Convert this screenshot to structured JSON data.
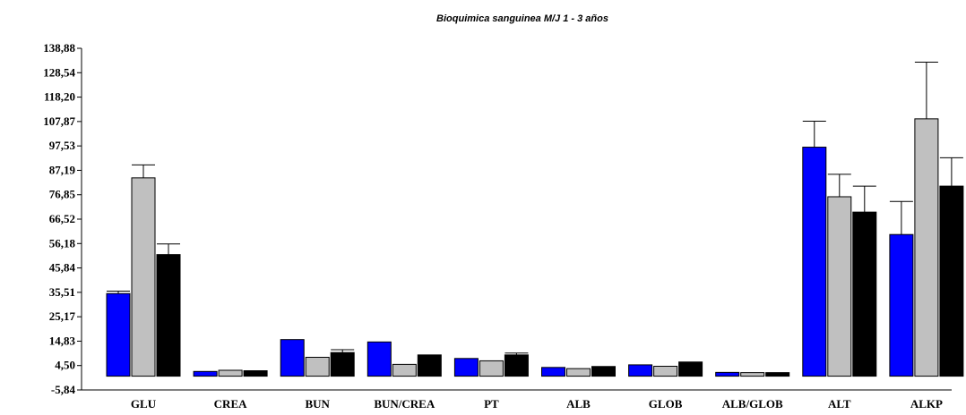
{
  "chart_data": {
    "type": "bar",
    "title": "Bioquimica sanguinea M/J 1 - 3 años",
    "xlabel": "",
    "ylabel": "",
    "ylim": [
      -5.84,
      138.88
    ],
    "y_ticks": [
      "-5,84",
      "4,50",
      "14,83",
      "25,17",
      "35,51",
      "45,84",
      "56,18",
      "66,52",
      "76,85",
      "87,19",
      "97,53",
      "107,87",
      "118,20",
      "128,54",
      "138,88"
    ],
    "y_tick_values": [
      -5.84,
      4.5,
      14.83,
      25.17,
      35.51,
      45.84,
      56.18,
      66.52,
      76.85,
      87.19,
      97.53,
      107.87,
      118.2,
      128.54,
      138.88
    ],
    "categories": [
      "GLU",
      "CREA",
      "BUN",
      "BUN/CREA",
      "PT",
      "ALB",
      "GLOB",
      "ALB/GLOB",
      "ALT",
      "ALKP"
    ],
    "grid": false,
    "legend": "none",
    "series": [
      {
        "color": "#0000ff",
        "values": [
          35.0,
          2.0,
          15.5,
          14.5,
          7.5,
          3.7,
          4.8,
          1.6,
          97.0,
          60.0
        ],
        "errors": [
          1.0,
          0,
          0,
          0,
          0,
          0,
          0,
          0,
          11.0,
          14.0
        ]
      },
      {
        "color": "#c0c0c0",
        "values": [
          84.0,
          2.5,
          8.0,
          5.0,
          6.5,
          3.2,
          4.2,
          1.5,
          76.0,
          109.0
        ],
        "errors": [
          5.5,
          0,
          0,
          0,
          0,
          0,
          0,
          0,
          9.5,
          24.0
        ]
      },
      {
        "color": "#000000",
        "values": [
          51.5,
          2.3,
          10.0,
          9.0,
          9.0,
          4.1,
          6.0,
          1.5,
          69.5,
          80.5
        ],
        "errors": [
          4.5,
          0,
          1.2,
          0,
          0.8,
          0,
          0,
          0,
          11.0,
          12.0
        ]
      }
    ]
  }
}
